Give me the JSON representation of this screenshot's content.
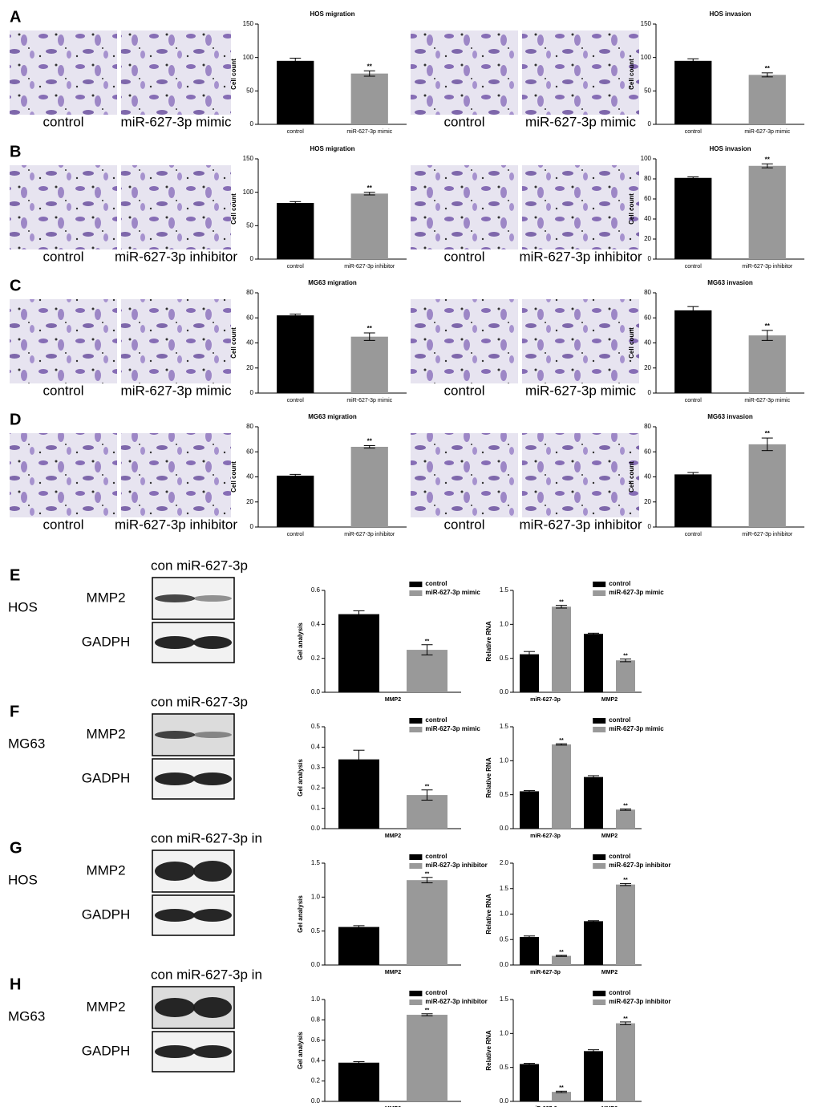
{
  "panels_top": [
    {
      "letter": "A",
      "image_captions": [
        [
          "control",
          "miR-627-3p mimic"
        ],
        [
          "control",
          "miR-627-3p mimic"
        ]
      ],
      "charts": [
        {
          "type": "bar",
          "title": "HOS migration",
          "ylabel": "Cell count",
          "categories": [
            "control",
            "miR-627-3p mimic"
          ],
          "values": [
            95,
            76
          ],
          "errors": [
            4,
            4
          ],
          "significance": [
            null,
            "**"
          ],
          "colors": [
            "#000000",
            "#999999"
          ],
          "ylim": [
            0,
            150
          ],
          "yticks": [
            0,
            50,
            100,
            150
          ]
        },
        {
          "type": "bar",
          "title": "HOS invasion",
          "ylabel": "Cell count",
          "categories": [
            "control",
            "miR-627-3p mimic"
          ],
          "values": [
            95,
            74
          ],
          "errors": [
            3,
            3
          ],
          "significance": [
            null,
            "**"
          ],
          "colors": [
            "#000000",
            "#999999"
          ],
          "ylim": [
            0,
            150
          ],
          "yticks": [
            0,
            50,
            100,
            150
          ]
        }
      ]
    },
    {
      "letter": "B",
      "image_captions": [
        [
          "control",
          "miR-627-3p inhibitor"
        ],
        [
          "control",
          "miR-627-3p inhibitor"
        ]
      ],
      "charts": [
        {
          "type": "bar",
          "title": "HOS migration",
          "ylabel": "Cell count",
          "categories": [
            "control",
            "miR-627-3p inhibitor"
          ],
          "values": [
            84,
            98
          ],
          "errors": [
            2,
            2
          ],
          "significance": [
            null,
            "**"
          ],
          "colors": [
            "#000000",
            "#999999"
          ],
          "ylim": [
            0,
            150
          ],
          "yticks": [
            0,
            50,
            100,
            150
          ]
        },
        {
          "type": "bar",
          "title": "HOS invasion",
          "ylabel": "Cell count",
          "categories": [
            "control",
            "miR-627-3p inhibitor"
          ],
          "values": [
            81,
            93
          ],
          "errors": [
            1,
            2
          ],
          "significance": [
            null,
            "**"
          ],
          "colors": [
            "#000000",
            "#999999"
          ],
          "ylim": [
            0,
            100
          ],
          "yticks": [
            0,
            20,
            40,
            60,
            80,
            100
          ]
        }
      ]
    },
    {
      "letter": "C",
      "image_captions": [
        [
          "control",
          "miR-627-3p mimic"
        ],
        [
          "control",
          "miR-627-3p mimic"
        ]
      ],
      "charts": [
        {
          "type": "bar",
          "title": "MG63 migration",
          "ylabel": "Cell count",
          "categories": [
            "control",
            "miR-627-3p mimic"
          ],
          "values": [
            62,
            45
          ],
          "errors": [
            1,
            3
          ],
          "significance": [
            null,
            "**"
          ],
          "colors": [
            "#000000",
            "#999999"
          ],
          "ylim": [
            0,
            80
          ],
          "yticks": [
            0,
            20,
            40,
            60,
            80
          ]
        },
        {
          "type": "bar",
          "title": "MG63 invasion",
          "ylabel": "Cell count",
          "categories": [
            "control",
            "miR-627-3p mimic"
          ],
          "values": [
            66,
            46
          ],
          "errors": [
            3,
            4
          ],
          "significance": [
            null,
            "**"
          ],
          "colors": [
            "#000000",
            "#999999"
          ],
          "ylim": [
            0,
            80
          ],
          "yticks": [
            0,
            20,
            40,
            60,
            80
          ]
        }
      ]
    },
    {
      "letter": "D",
      "image_captions": [
        [
          "control",
          "miR-627-3p inhibitor"
        ],
        [
          "control",
          "miR-627-3p inhibitor"
        ]
      ],
      "charts": [
        {
          "type": "bar",
          "title": "MG63 migration",
          "ylabel": "Cell count",
          "categories": [
            "control",
            "miR-627-3p inhibitor"
          ],
          "values": [
            41,
            64
          ],
          "errors": [
            1,
            1
          ],
          "significance": [
            null,
            "**"
          ],
          "colors": [
            "#000000",
            "#999999"
          ],
          "ylim": [
            0,
            80
          ],
          "yticks": [
            0,
            20,
            40,
            60,
            80
          ]
        },
        {
          "type": "bar",
          "title": "MG63 invasion",
          "ylabel": "Cell count",
          "categories": [
            "control",
            "miR-627-3p inhibitor"
          ],
          "values": [
            42,
            66
          ],
          "errors": [
            1.5,
            5
          ],
          "significance": [
            null,
            "**"
          ],
          "colors": [
            "#000000",
            "#999999"
          ],
          "ylim": [
            0,
            80
          ],
          "yticks": [
            0,
            20,
            40,
            60,
            80
          ]
        }
      ]
    }
  ],
  "panels_bottom": [
    {
      "letter": "E",
      "cell_line": "HOS",
      "blot_header": "con miR-627-3p",
      "blot_labels": [
        "MMP2",
        "GADPH"
      ],
      "charts": [
        {
          "type": "grouped_bar",
          "ylabel": "Gel analysis",
          "categories": [
            "MMP2"
          ],
          "ylim": [
            0,
            0.6
          ],
          "yticks": [
            {
              "value": 0,
              "label": "0.0"
            },
            0.2,
            0.4,
            0.6
          ],
          "series": [
            {
              "name": "control",
              "color": "#000000",
              "values": [
                0.46
              ],
              "errors": [
                0.02
              ],
              "significance": [
                null
              ]
            },
            {
              "name": "miR-627-3p mimic",
              "color": "#999999",
              "values": [
                0.25
              ],
              "errors": [
                0.03
              ],
              "significance": [
                "**"
              ]
            }
          ]
        },
        {
          "type": "grouped_bar",
          "ylabel": "Relative RNA",
          "categories": [
            "miR-627-3p",
            "MMP2"
          ],
          "ylim": [
            0,
            1.5
          ],
          "yticks": [
            {
              "value": 0,
              "label": "0.0"
            },
            0.5,
            {
              "value": 1,
              "label": "1.0"
            },
            1.5
          ],
          "series": [
            {
              "name": "control",
              "color": "#000000",
              "values": [
                0.56,
                0.86
              ],
              "errors": [
                0.04,
                0.01
              ],
              "significance": [
                null,
                null
              ]
            },
            {
              "name": "miR-627-3p mimic",
              "color": "#999999",
              "values": [
                1.26,
                0.47
              ],
              "errors": [
                0.02,
                0.02
              ],
              "significance": [
                "**",
                "**"
              ]
            }
          ]
        }
      ]
    },
    {
      "letter": "F",
      "cell_line": "MG63",
      "blot_header": "con miR-627-3p",
      "blot_labels": [
        "MMP2",
        "GADPH"
      ],
      "charts": [
        {
          "type": "grouped_bar",
          "ylabel": "Gel analysis",
          "categories": [
            "MMP2"
          ],
          "ylim": [
            0,
            0.5
          ],
          "yticks": [
            {
              "value": 0,
              "label": "0.0"
            },
            0.1,
            0.2,
            0.3,
            0.4,
            0.5
          ],
          "series": [
            {
              "name": "control",
              "color": "#000000",
              "values": [
                0.34
              ],
              "errors": [
                0.045
              ],
              "significance": [
                null
              ]
            },
            {
              "name": "miR-627-3p mimic",
              "color": "#999999",
              "values": [
                0.165
              ],
              "errors": [
                0.025
              ],
              "significance": [
                "**"
              ]
            }
          ]
        },
        {
          "type": "grouped_bar",
          "ylabel": "Relative RNA",
          "categories": [
            "miR-627-3p",
            "MMP2"
          ],
          "ylim": [
            0,
            1.5
          ],
          "yticks": [
            {
              "value": 0,
              "label": "0.0"
            },
            0.5,
            {
              "value": 1,
              "label": "1.0"
            },
            1.5
          ],
          "series": [
            {
              "name": "control",
              "color": "#000000",
              "values": [
                0.55,
                0.76
              ],
              "errors": [
                0.01,
                0.02
              ],
              "significance": [
                null,
                null
              ]
            },
            {
              "name": "miR-627-3p mimic",
              "color": "#999999",
              "values": [
                1.24,
                0.28
              ],
              "errors": [
                0.01,
                0.01
              ],
              "significance": [
                "**",
                "**"
              ]
            }
          ]
        }
      ]
    },
    {
      "letter": "G",
      "cell_line": "HOS",
      "blot_header": "con miR-627-3p in",
      "blot_labels": [
        "MMP2",
        "GADPH"
      ],
      "charts": [
        {
          "type": "grouped_bar",
          "ylabel": "Gel analysis",
          "categories": [
            "MMP2"
          ],
          "ylim": [
            0,
            1.5
          ],
          "yticks": [
            {
              "value": 0,
              "label": "0.0"
            },
            0.5,
            {
              "value": 1,
              "label": "1.0"
            },
            1.5
          ],
          "series": [
            {
              "name": "control",
              "color": "#000000",
              "values": [
                0.56
              ],
              "errors": [
                0.02
              ],
              "significance": [
                null
              ]
            },
            {
              "name": "miR-627-3p inhibitor",
              "color": "#999999",
              "values": [
                1.25
              ],
              "errors": [
                0.04
              ],
              "significance": [
                "**"
              ]
            }
          ]
        },
        {
          "type": "grouped_bar",
          "ylabel": "Relative RNA",
          "categories": [
            "miR-627-3p",
            "MMP2"
          ],
          "ylim": [
            0,
            2
          ],
          "yticks": [
            {
              "value": 0,
              "label": "0.0"
            },
            0.5,
            {
              "value": 1,
              "label": "1.0"
            },
            1.5,
            {
              "value": 2,
              "label": "2.0"
            }
          ],
          "series": [
            {
              "name": "control",
              "color": "#000000",
              "values": [
                0.55,
                0.86
              ],
              "errors": [
                0.02,
                0.01
              ],
              "significance": [
                null,
                null
              ]
            },
            {
              "name": "miR-627-3p inhibitor",
              "color": "#999999",
              "values": [
                0.18,
                1.58
              ],
              "errors": [
                0.01,
                0.02
              ],
              "significance": [
                "**",
                "**"
              ]
            }
          ]
        }
      ]
    },
    {
      "letter": "H",
      "cell_line": "MG63",
      "blot_header": "con miR-627-3p in",
      "blot_labels": [
        "MMP2",
        "GADPH"
      ],
      "charts": [
        {
          "type": "grouped_bar",
          "ylabel": "Gel analysis",
          "categories": [
            "MMP2"
          ],
          "ylim": [
            0,
            1
          ],
          "yticks": [
            {
              "value": 0,
              "label": "0.0"
            },
            0.2,
            0.4,
            0.6,
            0.8,
            {
              "value": 1,
              "label": "1.0"
            }
          ],
          "series": [
            {
              "name": "control",
              "color": "#000000",
              "values": [
                0.38
              ],
              "errors": [
                0.01
              ],
              "significance": [
                null
              ]
            },
            {
              "name": "miR-627-3p inhibitor",
              "color": "#999999",
              "values": [
                0.85
              ],
              "errors": [
                0.01
              ],
              "significance": [
                "**"
              ]
            }
          ]
        },
        {
          "type": "grouped_bar",
          "ylabel": "Relative RNA",
          "categories": [
            "miR-627-3p",
            "MMP2"
          ],
          "ylim": [
            0,
            1.5
          ],
          "yticks": [
            {
              "value": 0,
              "label": "0.0"
            },
            0.5,
            {
              "value": 1,
              "label": "1.0"
            },
            1.5
          ],
          "series": [
            {
              "name": "control",
              "color": "#000000",
              "values": [
                0.55,
                0.74
              ],
              "errors": [
                0.01,
                0.02
              ],
              "significance": [
                null,
                null
              ]
            },
            {
              "name": "miR-627-3p inhibitor",
              "color": "#999999",
              "values": [
                0.14,
                1.15
              ],
              "errors": [
                0.01,
                0.02
              ],
              "significance": [
                "**",
                "**"
              ]
            }
          ]
        }
      ]
    }
  ]
}
